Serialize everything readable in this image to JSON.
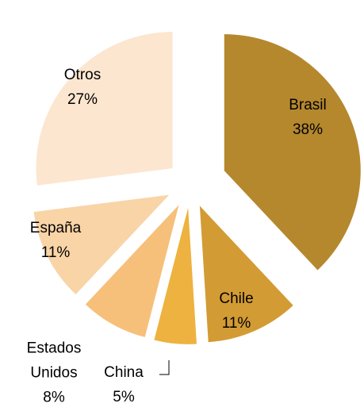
{
  "chart_data": {
    "type": "pie",
    "categories": [
      "Brasil",
      "Chile",
      "China",
      "Estados Unidos",
      "España",
      "Otros"
    ],
    "values": [
      38,
      11,
      5,
      8,
      11,
      27
    ],
    "value_labels": [
      "38%",
      "11%",
      "5%",
      "8%",
      "11%",
      "27%"
    ],
    "colors": [
      "#b5882e",
      "#d39b34",
      "#edb23f",
      "#f6c07a",
      "#f9d4a6",
      "#fce6d0"
    ]
  }
}
